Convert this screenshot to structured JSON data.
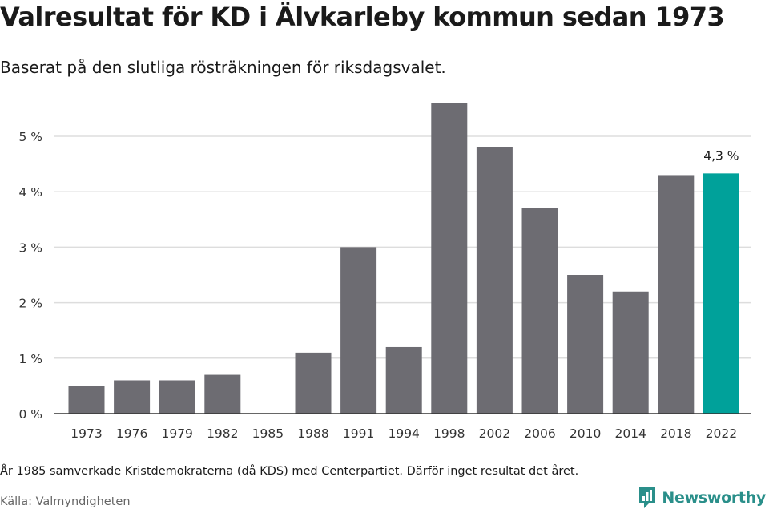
{
  "header": {
    "title": "Valresultat för KD i Älvkarleby kommun sedan 1973",
    "subtitle": "Baserat på den slutliga rösträkningen för riksdagsvalet."
  },
  "footer": {
    "note": "År 1985 samverkade Kristdemokraterna (då KDS) med Centerpartiet. Därför inget resultat det året.",
    "source": "Källa: Valmyndigheten",
    "brand": "Newsworthy"
  },
  "colors": {
    "bar": "#6d6c72",
    "highlight": "#00a19a",
    "grid": "#dddddd",
    "brand": "#2a8f8a"
  },
  "chart_data": {
    "type": "bar",
    "title": "",
    "xlabel": "",
    "ylabel": "",
    "categories": [
      "1973",
      "1976",
      "1979",
      "1982",
      "1985",
      "1988",
      "1991",
      "1994",
      "1998",
      "2002",
      "2006",
      "2010",
      "2014",
      "2018",
      "2022"
    ],
    "values": [
      0.5,
      0.6,
      0.6,
      0.7,
      null,
      1.1,
      3.0,
      1.2,
      5.6,
      4.8,
      3.7,
      2.5,
      2.2,
      4.3,
      4.33
    ],
    "ylim": [
      0,
      5.6
    ],
    "yticks": [
      0,
      1,
      2,
      3,
      4,
      5
    ],
    "ytick_labels": [
      "0 %",
      "1 %",
      "2 %",
      "3 %",
      "4 %",
      "5 %"
    ],
    "highlight_index": 14,
    "data_labels": [
      {
        "index": 14,
        "text": "4,3 %"
      }
    ],
    "grid": true,
    "legend": "none"
  }
}
